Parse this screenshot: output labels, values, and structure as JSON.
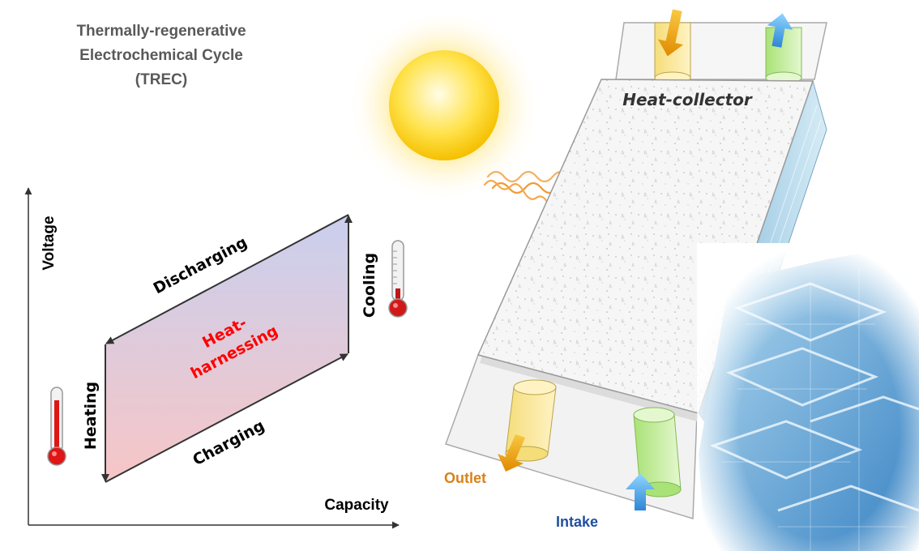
{
  "title": {
    "line1": "Thermally-regenerative",
    "line2": "Electrochemical Cycle",
    "line3": "(TREC)"
  },
  "cycle_plot": {
    "y_axis_label": "Voltage",
    "x_axis_label": "Capacity",
    "steps": {
      "heating": "Heating",
      "charging": "Charging",
      "cooling": "Cooling",
      "discharging": "Discharging"
    },
    "center_label_line1": "Heat-",
    "center_label_line2": "harnessing"
  },
  "device": {
    "collector_label": "Heat-collector",
    "outlet_label": "Outlet",
    "intake_label": "Intake"
  },
  "colors": {
    "title_gray": "#595959",
    "center_red": "#ff0000",
    "outlet_orange": "#d9811a",
    "intake_blue": "#1f4fa0",
    "sun_yellow": "#ffd21f",
    "panel_fill": "#f4f4f4",
    "building_blue": "#5aa0d8"
  },
  "icons": [
    "sun-icon",
    "thermometer-hot-icon",
    "thermometer-cool-icon",
    "heat-wave-icon",
    "flow-arrow-icon"
  ]
}
